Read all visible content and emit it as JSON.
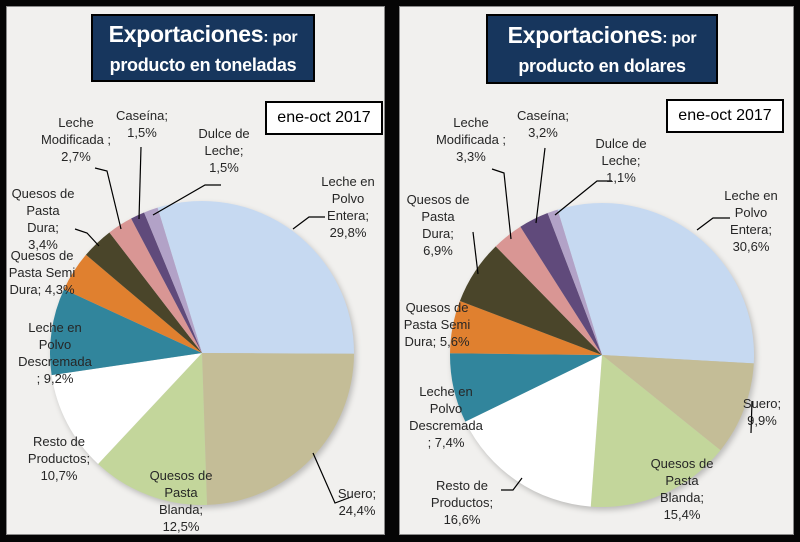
{
  "window": {
    "background_color": "#050505",
    "panel_background_color": "#F1F0EE",
    "title_background_color": "#17365D",
    "title_text_color": "#FFFFFF"
  },
  "chart_data": [
    {
      "type": "pie",
      "title": "Exportaciones: por producto en toneladas",
      "title_main": "Exportaciones",
      "title_suffix": ": por",
      "title_line2": "producto en toneladas",
      "period": "ene-oct 2017",
      "start_angle_deg": -17,
      "legend_position": "none",
      "slices": [
        {
          "name": "Leche en Polvo Entera",
          "value": 29.8,
          "label": "Leche en Polvo Entera; 29,8%",
          "color": "#C6D9F1"
        },
        {
          "name": "Suero",
          "value": 24.4,
          "label": "Suero; 24,4%",
          "color": "#C4BD97"
        },
        {
          "name": "Quesos de Pasta Blanda",
          "value": 12.5,
          "label": "Quesos de Pasta Blanda; 12,5%",
          "color": "#C3D69B"
        },
        {
          "name": "Resto de Productos",
          "value": 10.7,
          "label": "Resto de Productos; 10,7%",
          "color": "#FFFFFF"
        },
        {
          "name": "Leche en Polvo Descremada",
          "value": 9.2,
          "label": "Leche en Polvo Descremada ; 9,2%",
          "color": "#31859C"
        },
        {
          "name": "Quesos de Pasta Semi Dura",
          "value": 4.3,
          "label": "Quesos de Pasta Semi Dura; 4,3%",
          "color": "#E0802F"
        },
        {
          "name": "Quesos de Pasta Dura",
          "value": 3.4,
          "label": "Quesos de Pasta Dura; 3,4%",
          "color": "#4A452A"
        },
        {
          "name": "Leche Modificada",
          "value": 2.7,
          "label": "Leche Modificada ; 2,7%",
          "color": "#D99694"
        },
        {
          "name": "Caseína",
          "value": 1.5,
          "label": "Caseína; 1,5%",
          "color": "#604A7B"
        },
        {
          "name": "Dulce de Leche",
          "value": 1.5,
          "label": "Dulce de Leche; 1,5%",
          "color": "#B2A2C7"
        }
      ]
    },
    {
      "type": "pie",
      "title": "Exportaciones: por producto en dolares",
      "title_main": "Exportaciones",
      "title_suffix": ": por",
      "title_line2": "producto en dolares",
      "period": "ene-oct 2017",
      "start_angle_deg": -17,
      "legend_position": "none",
      "slices": [
        {
          "name": "Leche en Polvo Entera",
          "value": 30.6,
          "label": "Leche en Polvo Entera; 30,6%",
          "color": "#C6D9F1"
        },
        {
          "name": "Suero",
          "value": 9.9,
          "label": "Suero; 9,9%",
          "color": "#C4BD97"
        },
        {
          "name": "Quesos de Pasta Blanda",
          "value": 15.4,
          "label": "Quesos de Pasta Blanda; 15,4%",
          "color": "#C3D69B"
        },
        {
          "name": "Resto de Productos",
          "value": 16.6,
          "label": "Resto de Productos; 16,6%",
          "color": "#FFFFFF"
        },
        {
          "name": "Leche en Polvo Descremada",
          "value": 7.4,
          "label": "Leche en Polvo Descremada ; 7,4%",
          "color": "#31859C"
        },
        {
          "name": "Quesos de Pasta Semi Dura",
          "value": 5.6,
          "label": "Quesos de Pasta Semi Dura; 5,6%",
          "color": "#E0802F"
        },
        {
          "name": "Quesos de Pasta Dura",
          "value": 6.9,
          "label": "Quesos de Pasta Dura; 6,9%",
          "color": "#4A452A"
        },
        {
          "name": "Leche Modificada",
          "value": 3.3,
          "label": "Leche Modificada ; 3,3%",
          "color": "#D99694"
        },
        {
          "name": "Caseína",
          "value": 3.2,
          "label": "Caseína; 3,2%",
          "color": "#604A7B"
        },
        {
          "name": "Dulce de Leche",
          "value": 1.1,
          "label": "Dulce de Leche; 1,1%",
          "color": "#B2A2C7"
        }
      ]
    }
  ]
}
